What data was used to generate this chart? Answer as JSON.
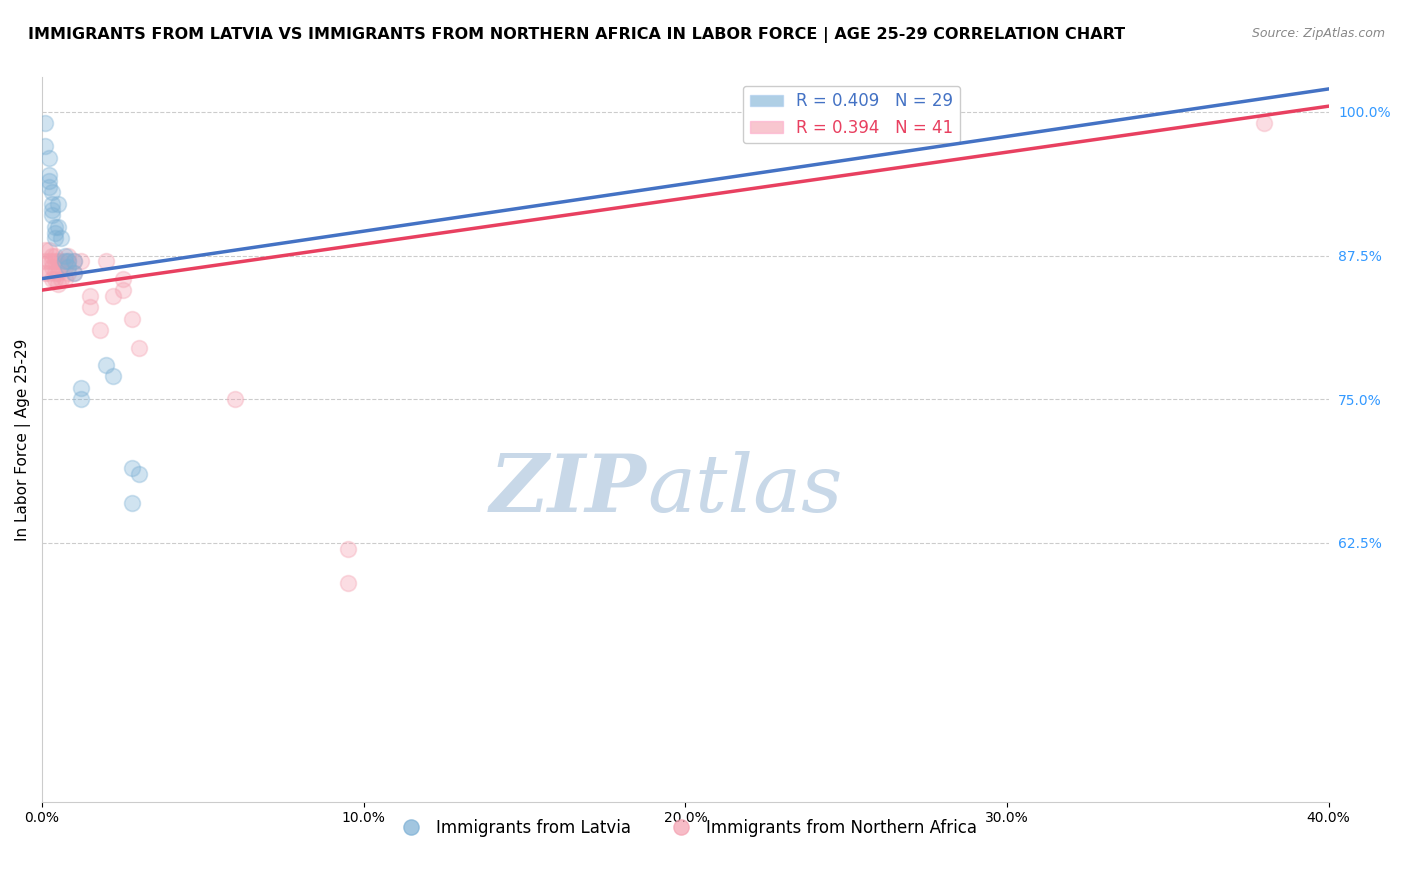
{
  "title": "IMMIGRANTS FROM LATVIA VS IMMIGRANTS FROM NORTHERN AFRICA IN LABOR FORCE | AGE 25-29 CORRELATION CHART",
  "source": "Source: ZipAtlas.com",
  "ylabel": "In Labor Force | Age 25-29",
  "xlim": [
    0.0,
    0.4
  ],
  "ylim": [
    0.4,
    1.03
  ],
  "xtick_labels": [
    "0.0%",
    "10.0%",
    "20.0%",
    "30.0%",
    "40.0%"
  ],
  "xtick_vals": [
    0.0,
    0.1,
    0.2,
    0.3,
    0.4
  ],
  "ytick_labels_right": [
    "100.0%",
    "87.5%",
    "75.0%",
    "62.5%"
  ],
  "ytick_vals_right": [
    1.0,
    0.875,
    0.75,
    0.625
  ],
  "legend_blue_label": "R = 0.409   N = 29",
  "legend_pink_label": "R = 0.394   N = 41",
  "blue_color": "#7BAFD4",
  "pink_color": "#F4A0B0",
  "blue_line_color": "#4472C4",
  "pink_line_color": "#E84060",
  "watermark_zip": "ZIP",
  "watermark_atlas": "atlas",
  "watermark_color": "#C8D8E8",
  "grid_color": "#CCCCCC",
  "latvia_x": [
    0.001,
    0.001,
    0.002,
    0.002,
    0.002,
    0.002,
    0.003,
    0.003,
    0.003,
    0.003,
    0.004,
    0.004,
    0.004,
    0.005,
    0.005,
    0.006,
    0.007,
    0.007,
    0.008,
    0.008,
    0.01,
    0.01,
    0.012,
    0.012,
    0.02,
    0.022,
    0.028,
    0.028,
    0.03
  ],
  "latvia_y": [
    0.99,
    0.97,
    0.96,
    0.945,
    0.94,
    0.935,
    0.93,
    0.92,
    0.915,
    0.91,
    0.9,
    0.895,
    0.89,
    0.92,
    0.9,
    0.89,
    0.875,
    0.87,
    0.865,
    0.87,
    0.86,
    0.87,
    0.76,
    0.75,
    0.78,
    0.77,
    0.69,
    0.66,
    0.685
  ],
  "africa_x": [
    0.001,
    0.001,
    0.001,
    0.002,
    0.002,
    0.002,
    0.003,
    0.003,
    0.003,
    0.003,
    0.004,
    0.004,
    0.004,
    0.004,
    0.005,
    0.005,
    0.005,
    0.006,
    0.006,
    0.006,
    0.007,
    0.007,
    0.008,
    0.008,
    0.008,
    0.01,
    0.01,
    0.012,
    0.015,
    0.015,
    0.018,
    0.02,
    0.022,
    0.025,
    0.025,
    0.028,
    0.03,
    0.06,
    0.095,
    0.095,
    0.38
  ],
  "africa_y": [
    0.88,
    0.87,
    0.86,
    0.88,
    0.87,
    0.86,
    0.875,
    0.87,
    0.865,
    0.855,
    0.87,
    0.875,
    0.86,
    0.855,
    0.87,
    0.86,
    0.85,
    0.87,
    0.865,
    0.855,
    0.865,
    0.855,
    0.875,
    0.87,
    0.86,
    0.87,
    0.86,
    0.87,
    0.84,
    0.83,
    0.81,
    0.87,
    0.84,
    0.855,
    0.845,
    0.82,
    0.795,
    0.75,
    0.62,
    0.59,
    0.99
  ],
  "blue_line_x0": 0.0,
  "blue_line_y0": 0.855,
  "blue_line_x1": 0.4,
  "blue_line_y1": 1.02,
  "pink_line_x0": 0.0,
  "pink_line_y0": 0.845,
  "pink_line_x1": 0.4,
  "pink_line_y1": 1.005,
  "marker_size": 130,
  "marker_alpha": 0.35,
  "line_width": 2.5,
  "title_fontsize": 11.5,
  "axis_fontsize": 11,
  "tick_fontsize": 10,
  "legend_fontsize": 12
}
